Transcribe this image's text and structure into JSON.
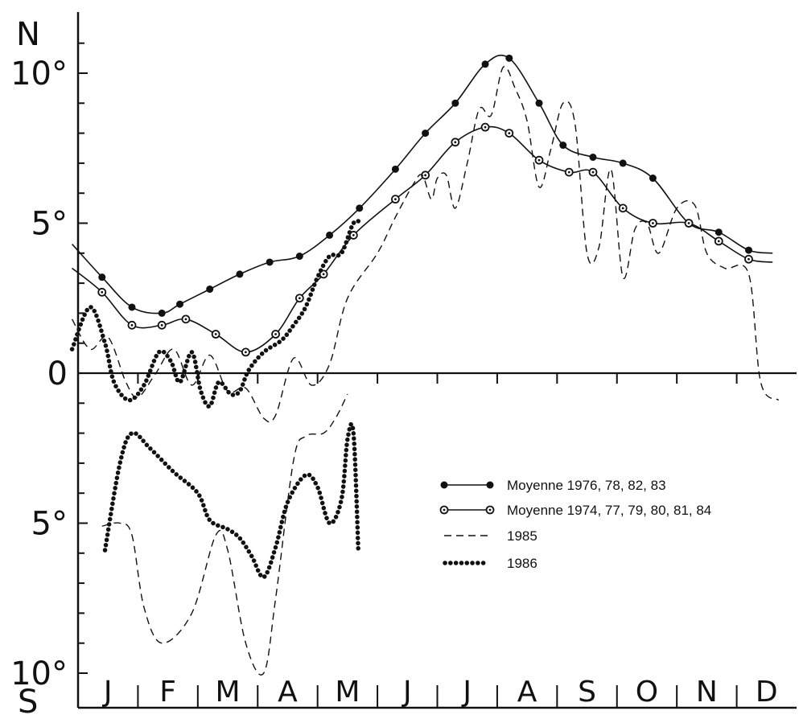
{
  "chart_data": {
    "type": "line",
    "title": "",
    "xlabel": "",
    "ylabel": "",
    "y_top_label": "N",
    "y_bottom_label": "S",
    "x_unit": "month (J..D)",
    "xlim": [
      0,
      12
    ],
    "ylim": [
      -10.5,
      12
    ],
    "y_ticks": [
      {
        "value": 10,
        "label": "10°"
      },
      {
        "value": 5,
        "label": "5°"
      },
      {
        "value": 0,
        "label": "0"
      },
      {
        "value": -5,
        "label": "5°"
      },
      {
        "value": -10,
        "label": "10°"
      }
    ],
    "months": [
      "J",
      "F",
      "M",
      "A",
      "M",
      "J",
      "J",
      "A",
      "S",
      "O",
      "N",
      "D"
    ],
    "grid": false,
    "legend_position": "lower-right",
    "series": [
      {
        "name": "Moyenne 1976, 78, 82, 83",
        "style": "solid-filled-dots",
        "color": "#111111",
        "points": [
          [
            -0.1,
            4.3
          ],
          [
            0.4,
            3.2
          ],
          [
            0.9,
            2.2
          ],
          [
            1.4,
            2.0
          ],
          [
            1.7,
            2.3
          ],
          [
            2.2,
            2.8
          ],
          [
            2.7,
            3.3
          ],
          [
            3.2,
            3.7
          ],
          [
            3.7,
            3.9
          ],
          [
            4.2,
            4.6
          ],
          [
            4.7,
            5.5
          ],
          [
            5.3,
            6.8
          ],
          [
            5.8,
            8.0
          ],
          [
            6.3,
            9.0
          ],
          [
            6.8,
            10.3
          ],
          [
            7.2,
            10.5
          ],
          [
            7.7,
            9.0
          ],
          [
            8.1,
            7.6
          ],
          [
            8.6,
            7.2
          ],
          [
            9.1,
            7.0
          ],
          [
            9.6,
            6.5
          ],
          [
            10.2,
            5.0
          ],
          [
            10.7,
            4.7
          ],
          [
            11.2,
            4.1
          ],
          [
            11.6,
            4.0
          ]
        ]
      },
      {
        "name": "Moyenne 1974, 77, 79, 80, 81, 84",
        "style": "solid-open-circles",
        "color": "#111111",
        "points": [
          [
            -0.1,
            3.5
          ],
          [
            0.4,
            2.7
          ],
          [
            0.9,
            1.6
          ],
          [
            1.4,
            1.6
          ],
          [
            1.8,
            1.8
          ],
          [
            2.3,
            1.3
          ],
          [
            2.8,
            0.7
          ],
          [
            3.3,
            1.3
          ],
          [
            3.7,
            2.5
          ],
          [
            4.1,
            3.3
          ],
          [
            4.6,
            4.6
          ],
          [
            5.3,
            5.8
          ],
          [
            5.8,
            6.6
          ],
          [
            6.3,
            7.7
          ],
          [
            6.8,
            8.2
          ],
          [
            7.2,
            8.0
          ],
          [
            7.7,
            7.1
          ],
          [
            8.2,
            6.7
          ],
          [
            8.6,
            6.7
          ],
          [
            9.1,
            5.5
          ],
          [
            9.6,
            5.0
          ],
          [
            10.2,
            5.0
          ],
          [
            10.7,
            4.4
          ],
          [
            11.2,
            3.8
          ],
          [
            11.6,
            3.7
          ]
        ]
      },
      {
        "name": "1985",
        "style": "dashed",
        "color": "#111111",
        "segments": [
          [
            [
              -0.1,
              1.8
            ],
            [
              0.2,
              0.8
            ],
            [
              0.5,
              1.2
            ],
            [
              0.8,
              -0.3
            ],
            [
              1.0,
              -0.8
            ],
            [
              1.3,
              0.0
            ],
            [
              1.6,
              0.8
            ],
            [
              1.9,
              -0.4
            ],
            [
              2.2,
              0.6
            ],
            [
              2.5,
              -0.6
            ],
            [
              2.8,
              -0.5
            ],
            [
              3.1,
              -1.5
            ],
            [
              3.3,
              -1.4
            ],
            [
              3.6,
              0.5
            ],
            [
              3.9,
              -0.4
            ],
            [
              4.2,
              0.3
            ],
            [
              4.5,
              2.5
            ],
            [
              5.0,
              4.0
            ],
            [
              5.3,
              5.2
            ],
            [
              5.6,
              6.3
            ],
            [
              5.75,
              6.6
            ],
            [
              5.9,
              5.8
            ],
            [
              6.0,
              6.5
            ],
            [
              6.15,
              6.6
            ],
            [
              6.3,
              5.5
            ],
            [
              6.5,
              7.0
            ],
            [
              6.7,
              8.8
            ],
            [
              6.9,
              8.6
            ],
            [
              7.1,
              10.2
            ],
            [
              7.3,
              9.5
            ],
            [
              7.5,
              8.4
            ],
            [
              7.7,
              6.2
            ],
            [
              7.9,
              7.5
            ],
            [
              8.1,
              9.0
            ],
            [
              8.3,
              8.3
            ],
            [
              8.5,
              4.0
            ],
            [
              8.7,
              4.2
            ],
            [
              8.9,
              6.8
            ],
            [
              9.1,
              3.2
            ],
            [
              9.3,
              4.8
            ],
            [
              9.5,
              5.0
            ],
            [
              9.7,
              4.0
            ],
            [
              10.0,
              5.5
            ],
            [
              10.3,
              5.6
            ],
            [
              10.5,
              4.0
            ],
            [
              10.8,
              3.5
            ],
            [
              11.2,
              3.3
            ],
            [
              11.4,
              -0.3
            ],
            [
              11.7,
              -0.9
            ]
          ],
          [
            [
              0.4,
              -5.1
            ],
            [
              0.7,
              -5.0
            ],
            [
              0.9,
              -5.4
            ],
            [
              1.1,
              -7.8
            ],
            [
              1.4,
              -9.0
            ],
            [
              1.9,
              -8.0
            ],
            [
              2.3,
              -5.4
            ],
            [
              2.5,
              -5.9
            ],
            [
              2.8,
              -9.0
            ],
            [
              3.1,
              -10.0
            ],
            [
              3.3,
              -7.5
            ],
            [
              3.6,
              -2.9
            ],
            [
              3.8,
              -2.1
            ],
            [
              4.1,
              -2.0
            ],
            [
              4.3,
              -1.5
            ],
            [
              4.5,
              -0.7
            ]
          ]
        ]
      },
      {
        "name": "1986",
        "style": "dotted",
        "color": "#111111",
        "segments": [
          [
            [
              -0.1,
              0.8
            ],
            [
              0.2,
              2.2
            ],
            [
              0.45,
              1.0
            ],
            [
              0.6,
              -0.3
            ],
            [
              0.85,
              -0.9
            ],
            [
              1.1,
              -0.4
            ],
            [
              1.35,
              0.7
            ],
            [
              1.55,
              0.4
            ],
            [
              1.7,
              -0.3
            ],
            [
              1.9,
              0.7
            ],
            [
              2.05,
              -0.6
            ],
            [
              2.2,
              -1.1
            ],
            [
              2.35,
              -0.3
            ],
            [
              2.55,
              -0.7
            ],
            [
              2.7,
              -0.6
            ],
            [
              2.85,
              0.1
            ],
            [
              3.1,
              0.7
            ],
            [
              3.4,
              1.1
            ],
            [
              3.6,
              1.6
            ],
            [
              3.8,
              2.2
            ],
            [
              4.0,
              3.2
            ],
            [
              4.2,
              3.9
            ],
            [
              4.4,
              4.0
            ],
            [
              4.6,
              5.0
            ],
            [
              4.75,
              5.0
            ]
          ],
          [
            [
              0.45,
              -5.9
            ],
            [
              0.7,
              -3.0
            ],
            [
              0.9,
              -2.0
            ],
            [
              1.2,
              -2.5
            ],
            [
              1.6,
              -3.3
            ],
            [
              2.0,
              -4.0
            ],
            [
              2.2,
              -4.9
            ],
            [
              2.5,
              -5.2
            ],
            [
              2.7,
              -5.5
            ],
            [
              2.9,
              -6.1
            ],
            [
              3.1,
              -6.8
            ],
            [
              3.3,
              -5.8
            ],
            [
              3.5,
              -4.3
            ],
            [
              3.8,
              -3.4
            ],
            [
              4.0,
              -3.8
            ],
            [
              4.2,
              -5.0
            ],
            [
              4.4,
              -4.2
            ],
            [
              4.5,
              -2.2
            ],
            [
              4.6,
              -2.0
            ],
            [
              4.68,
              -5.9
            ]
          ]
        ]
      }
    ]
  }
}
